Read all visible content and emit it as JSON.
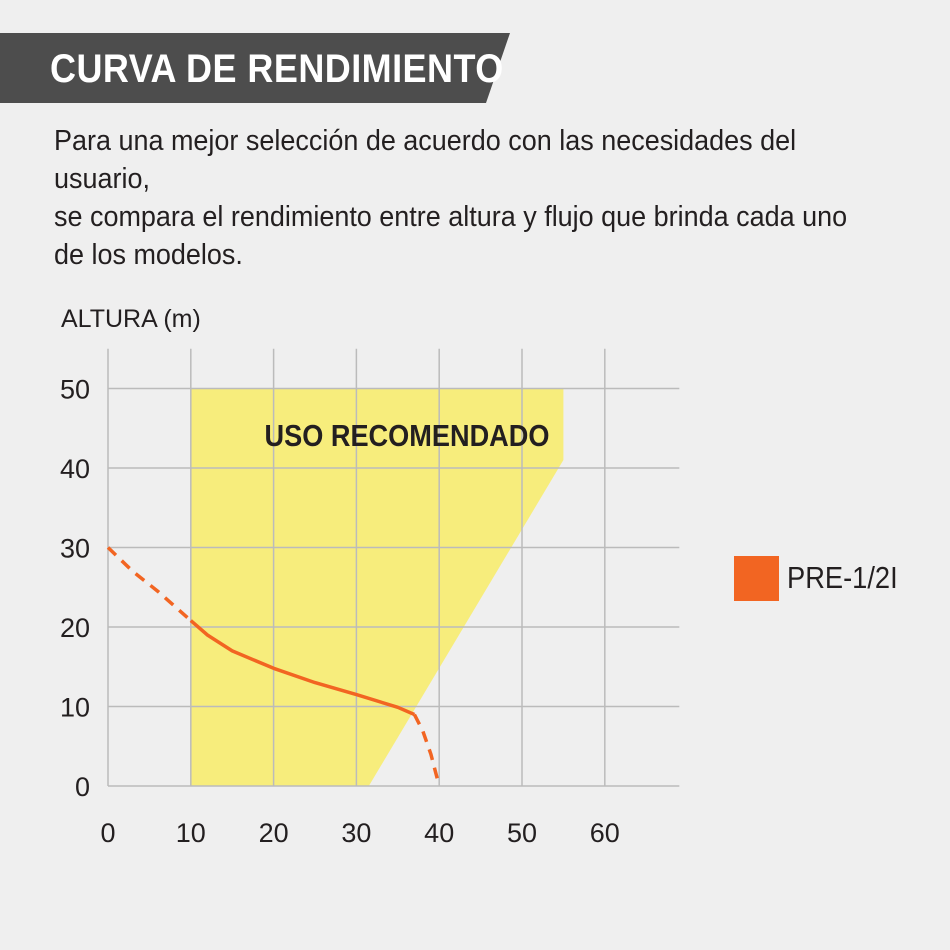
{
  "header": {
    "title": "CURVA DE RENDIMIENTO",
    "description": "Para una mejor selección de acuerdo con las necesidades del usuario,\nse compara el rendimiento entre altura y flujo que brinda cada uno\nde los modelos."
  },
  "colors": {
    "banner": "#4d4d4d",
    "recommended_zone": "#f7ed7c",
    "curve": "#f26522",
    "grid": "#bbbbbb",
    "background": "#efefef"
  },
  "chart_data": {
    "type": "line",
    "xlabel": "",
    "ylabel": "ALTURA (m)",
    "xlim": [
      0,
      69
    ],
    "ylim": [
      0,
      55
    ],
    "x_ticks": [
      0,
      10,
      20,
      30,
      40,
      50,
      60
    ],
    "y_ticks": [
      0,
      10,
      20,
      30,
      40,
      50
    ],
    "x_tick_labels": [
      "0",
      "10",
      "20",
      "30",
      "40",
      "50",
      "60"
    ],
    "y_tick_labels": [
      "0",
      "10",
      "20",
      "30",
      "40",
      "50"
    ],
    "grid": true,
    "recommended_zone": {
      "label": "USO RECOMENDADO",
      "polygon": [
        [
          10,
          0
        ],
        [
          10,
          50
        ],
        [
          55,
          50
        ],
        [
          55,
          41
        ],
        [
          31.5,
          0
        ]
      ]
    },
    "series": [
      {
        "name": "PRE-1/2I",
        "solid": [
          [
            10,
            20.8
          ],
          [
            12,
            19
          ],
          [
            15,
            17
          ],
          [
            20,
            14.8
          ],
          [
            25,
            13
          ],
          [
            30,
            11.5
          ],
          [
            35,
            9.9
          ],
          [
            37,
            9
          ]
        ],
        "dashed_start": [
          [
            0,
            30
          ],
          [
            3,
            27
          ],
          [
            6,
            24.5
          ],
          [
            10,
            20.8
          ]
        ],
        "dashed_end": [
          [
            37,
            9
          ],
          [
            38,
            7
          ],
          [
            39,
            4
          ],
          [
            40,
            0
          ]
        ]
      }
    ],
    "legend": {
      "position": "right",
      "entries": [
        "PRE-1/2I"
      ]
    }
  }
}
